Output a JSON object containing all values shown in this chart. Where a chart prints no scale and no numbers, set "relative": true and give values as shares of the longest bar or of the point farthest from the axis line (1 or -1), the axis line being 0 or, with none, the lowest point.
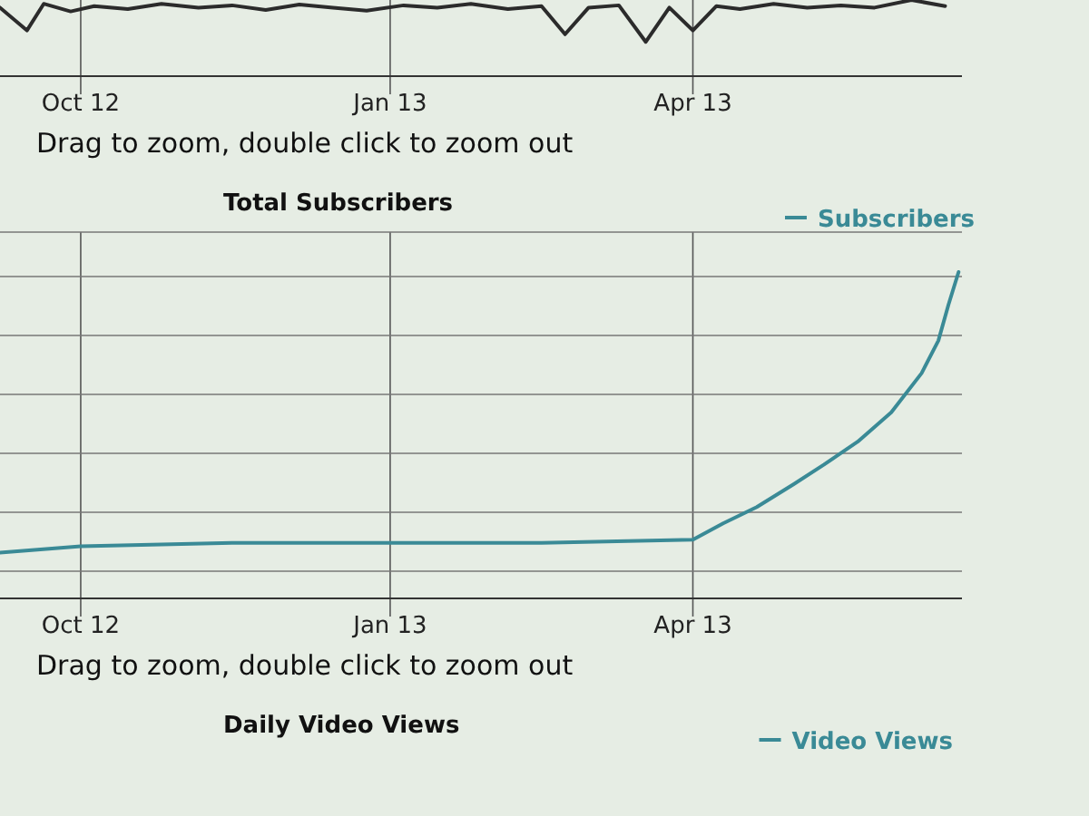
{
  "chart_data": [
    {
      "type": "line",
      "relative": true,
      "grid": "x",
      "x": [
        "2012-09-07",
        "2012-09-15",
        "2012-09-20",
        "2012-09-28",
        "2012-10-05",
        "2012-10-15",
        "2012-10-25",
        "2012-11-05",
        "2012-11-15",
        "2012-11-25",
        "2012-12-05",
        "2012-12-15",
        "2012-12-25",
        "2013-01-05",
        "2013-01-15",
        "2013-01-25",
        "2013-02-05",
        "2013-02-15",
        "2013-02-22",
        "2013-03-01",
        "2013-03-10",
        "2013-03-18",
        "2013-03-25",
        "2013-04-01",
        "2013-04-08",
        "2013-04-15",
        "2013-04-25",
        "2013-05-05",
        "2013-05-15",
        "2013-05-25",
        "2013-06-05",
        "2013-06-15"
      ],
      "series": [
        {
          "color": "#2b2b2b",
          "values": [
            0.9,
            0.6,
            0.95,
            0.85,
            0.92,
            0.88,
            0.95,
            0.9,
            0.93,
            0.87,
            0.94,
            0.9,
            0.86,
            0.93,
            0.9,
            0.95,
            0.88,
            0.92,
            0.55,
            0.9,
            0.93,
            0.45,
            0.9,
            0.6,
            0.92,
            0.88,
            0.95,
            0.9,
            0.93,
            0.9,
            1,
            0.92
          ]
        }
      ],
      "xlim": [
        "2012-09-07",
        "2013-06-20"
      ],
      "xticks": [
        {
          "value": "2012-10-01",
          "label": "Oct 12"
        },
        {
          "value": "2013-01-01",
          "label": "Jan 13"
        },
        {
          "value": "2013-04-01",
          "label": "Apr 13"
        }
      ],
      "annotations": [
        "Drag to zoom, double click to zoom out"
      ]
    },
    {
      "type": "line",
      "relative": true,
      "grid": true,
      "title": "Total Subscribers",
      "legend": "top right",
      "x": [
        "2012-09-07",
        "2012-10-01",
        "2012-11-15",
        "2013-01-01",
        "2013-02-15",
        "2013-04-01",
        "2013-04-10",
        "2013-04-20",
        "2013-05-01",
        "2013-05-10",
        "2013-05-20",
        "2013-05-30",
        "2013-06-08",
        "2013-06-13",
        "2013-06-16",
        "2013-06-19"
      ],
      "series": [
        {
          "name": "Subscribers",
          "color": "#3a8a96",
          "values": [
            0.14,
            0.16,
            0.17,
            0.17,
            0.17,
            0.18,
            0.23,
            0.28,
            0.35,
            0.41,
            0.48,
            0.57,
            0.69,
            0.79,
            0.9,
            1
          ]
        }
      ],
      "xlim": [
        "2012-09-07",
        "2013-06-20"
      ],
      "xticks": [
        {
          "value": "2012-10-01",
          "label": "Oct 12"
        },
        {
          "value": "2013-01-01",
          "label": "Jan 13"
        },
        {
          "value": "2013-04-01",
          "label": "Apr 13"
        }
      ],
      "annotations": [
        "Drag to zoom, double click to zoom out"
      ]
    },
    {
      "type": "other",
      "title": "Daily Video Views",
      "annotations": [
        "Video Views"
      ]
    }
  ]
}
